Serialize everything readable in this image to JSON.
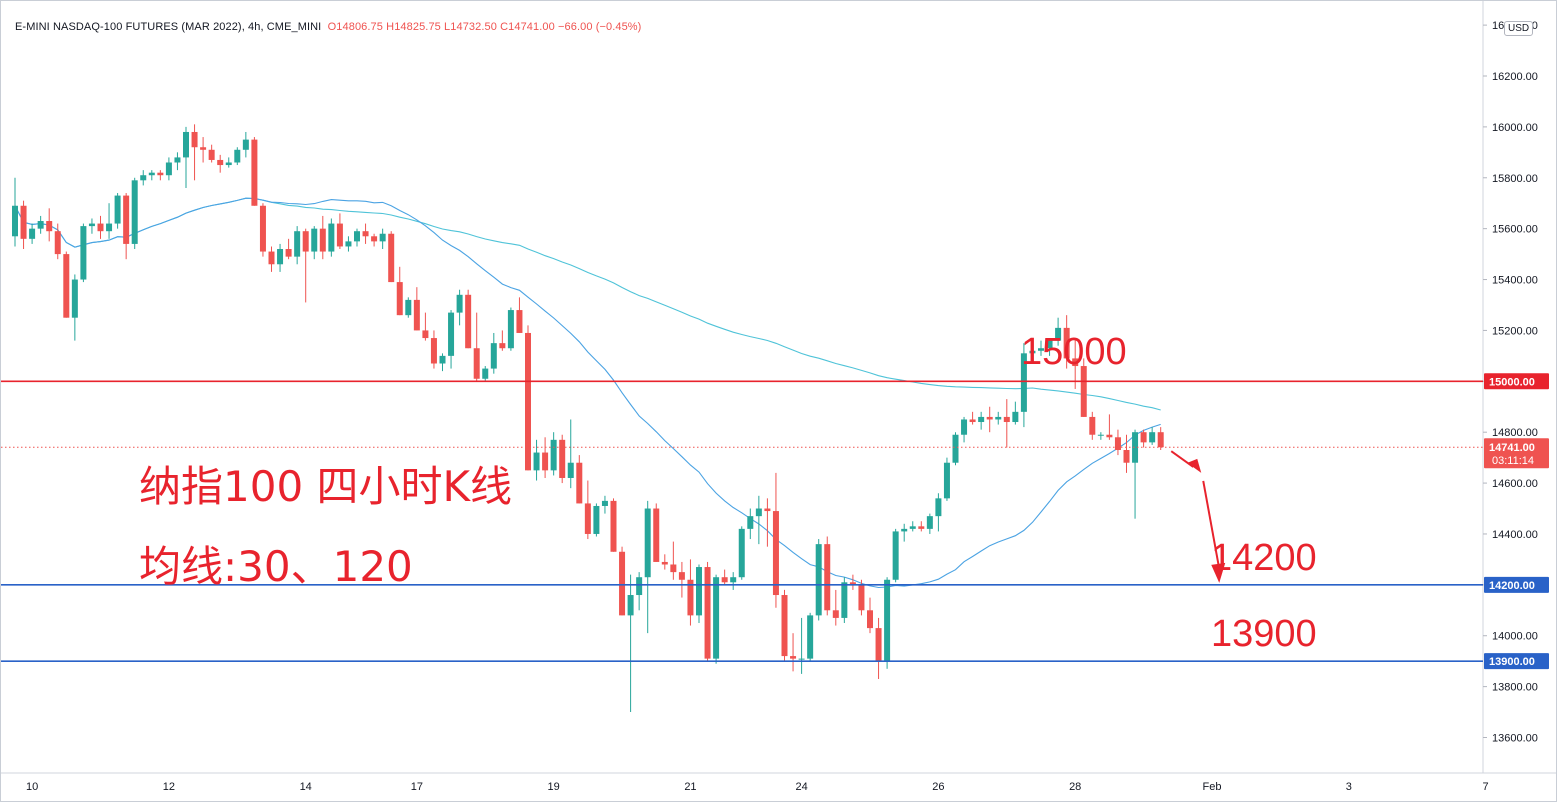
{
  "header": {
    "symbol": "E-MINI NASDAQ-100 FUTURES (MAR 2022), 4h, CME_MINI",
    "open": "O14806.75",
    "high": "H14825.75",
    "low": "L14732.50",
    "close": "C14741.00",
    "change": "−66.00 (−0.45%)"
  },
  "currency": "USD",
  "annotations": {
    "title": "纳指100 四小时K线",
    "ma_note": "均线:30、120",
    "level_15000": "15000",
    "level_14200": "14200",
    "level_13900": "13900"
  },
  "colors": {
    "up": "#26a69a",
    "down": "#ef5350",
    "ma30": "#4ba3e3",
    "ma120": "#4fc3d8",
    "resistance": "#e8232d",
    "support": "#2962c8"
  },
  "chart_data": {
    "type": "candlestick",
    "timeframe": "4h",
    "y_axis": {
      "ticks": [
        13600,
        13800,
        14000,
        14200,
        14400,
        14600,
        14800,
        15000,
        15200,
        15400,
        15600,
        15800,
        16000,
        16200,
        16400
      ],
      "tick_labels": [
        "13600.00",
        "13800.00",
        "14000.00",
        "14200.00",
        "14400.00",
        "14600.00",
        "14800.00",
        "15000.00",
        "15200.00",
        "15400.00",
        "15600.00",
        "15800.00",
        "16000.00",
        "16200.00",
        "16400.00"
      ],
      "range": [
        13480,
        16440
      ]
    },
    "x_axis": {
      "tick_labels": [
        "10",
        "12",
        "14",
        "17",
        "19",
        "21",
        "24",
        "26",
        "28",
        "Feb",
        "3",
        "7"
      ],
      "tick_bar_index": [
        2,
        18,
        34,
        47,
        63,
        79,
        92,
        108,
        124,
        140,
        156,
        172
      ]
    },
    "price_label": {
      "value": "14741.00",
      "countdown": "03:11:14"
    },
    "horizontal_lines": [
      {
        "value": 15000,
        "label": "15000.00",
        "color": "#e8232d"
      },
      {
        "value": 14200,
        "label": "14200.00",
        "color": "#2962c8"
      },
      {
        "value": 13900,
        "label": "13900.00",
        "color": "#2962c8"
      }
    ],
    "candles": [
      [
        15570,
        15800,
        15530,
        15690
      ],
      [
        15690,
        15710,
        15520,
        15560
      ],
      [
        15560,
        15620,
        15540,
        15600
      ],
      [
        15600,
        15650,
        15580,
        15630
      ],
      [
        15630,
        15680,
        15550,
        15590
      ],
      [
        15590,
        15620,
        15480,
        15500
      ],
      [
        15500,
        15510,
        15250,
        15250
      ],
      [
        15250,
        15420,
        15160,
        15400
      ],
      [
        15400,
        15620,
        15390,
        15610
      ],
      [
        15610,
        15640,
        15580,
        15620
      ],
      [
        15620,
        15650,
        15560,
        15590
      ],
      [
        15590,
        15700,
        15560,
        15620
      ],
      [
        15620,
        15740,
        15600,
        15730
      ],
      [
        15730,
        15740,
        15480,
        15540
      ],
      [
        15540,
        15800,
        15520,
        15790
      ],
      [
        15790,
        15830,
        15770,
        15810
      ],
      [
        15810,
        15830,
        15790,
        15820
      ],
      [
        15820,
        15830,
        15790,
        15810
      ],
      [
        15810,
        15880,
        15790,
        15860
      ],
      [
        15860,
        15900,
        15830,
        15880
      ],
      [
        15880,
        16000,
        15760,
        15980
      ],
      [
        15980,
        16010,
        15790,
        15920
      ],
      [
        15920,
        15960,
        15860,
        15910
      ],
      [
        15910,
        15930,
        15860,
        15870
      ],
      [
        15870,
        15890,
        15820,
        15850
      ],
      [
        15850,
        15880,
        15840,
        15860
      ],
      [
        15860,
        15920,
        15850,
        15910
      ],
      [
        15910,
        15980,
        15880,
        15950
      ],
      [
        15950,
        15960,
        15690,
        15690
      ],
      [
        15690,
        15700,
        15490,
        15510
      ],
      [
        15510,
        15530,
        15430,
        15460
      ],
      [
        15460,
        15540,
        15430,
        15520
      ],
      [
        15520,
        15560,
        15480,
        15490
      ],
      [
        15490,
        15610,
        15460,
        15590
      ],
      [
        15590,
        15600,
        15310,
        15510
      ],
      [
        15510,
        15610,
        15480,
        15600
      ],
      [
        15600,
        15650,
        15480,
        15510
      ],
      [
        15510,
        15640,
        15490,
        15620
      ],
      [
        15620,
        15660,
        15520,
        15530
      ],
      [
        15530,
        15570,
        15510,
        15550
      ],
      [
        15550,
        15600,
        15530,
        15590
      ],
      [
        15590,
        15620,
        15540,
        15570
      ],
      [
        15570,
        15580,
        15530,
        15550
      ],
      [
        15550,
        15600,
        15520,
        15580
      ],
      [
        15580,
        15590,
        15390,
        15390
      ],
      [
        15390,
        15450,
        15260,
        15260
      ],
      [
        15260,
        15330,
        15250,
        15320
      ],
      [
        15320,
        15370,
        15200,
        15200
      ],
      [
        15200,
        15270,
        15160,
        15170
      ],
      [
        15170,
        15200,
        15050,
        15070
      ],
      [
        15070,
        15110,
        15040,
        15100
      ],
      [
        15100,
        15280,
        15050,
        15270
      ],
      [
        15270,
        15360,
        15220,
        15340
      ],
      [
        15340,
        15360,
        15130,
        15130
      ],
      [
        15130,
        15270,
        15000,
        15010
      ],
      [
        15010,
        15060,
        15000,
        15050
      ],
      [
        15050,
        15190,
        15030,
        15150
      ],
      [
        15150,
        15200,
        15120,
        15130
      ],
      [
        15130,
        15290,
        15120,
        15280
      ],
      [
        15280,
        15330,
        15190,
        15190
      ],
      [
        15190,
        15220,
        14650,
        14650
      ],
      [
        14650,
        14770,
        14610,
        14720
      ],
      [
        14720,
        14780,
        14620,
        14650
      ],
      [
        14650,
        14800,
        14630,
        14770
      ],
      [
        14770,
        14790,
        14600,
        14620
      ],
      [
        14620,
        14850,
        14580,
        14680
      ],
      [
        14680,
        14710,
        14520,
        14520
      ],
      [
        14520,
        14610,
        14380,
        14400
      ],
      [
        14400,
        14520,
        14390,
        14510
      ],
      [
        14510,
        14550,
        14480,
        14530
      ],
      [
        14530,
        14540,
        14330,
        14330
      ],
      [
        14330,
        14350,
        14080,
        14080
      ],
      [
        14080,
        14240,
        13700,
        14160
      ],
      [
        14160,
        14250,
        14100,
        14230
      ],
      [
        14230,
        14530,
        14010,
        14500
      ],
      [
        14500,
        14520,
        14290,
        14290
      ],
      [
        14290,
        14320,
        14260,
        14280
      ],
      [
        14280,
        14370,
        14220,
        14250
      ],
      [
        14250,
        14290,
        14150,
        14220
      ],
      [
        14220,
        14300,
        14040,
        14080
      ],
      [
        14080,
        14280,
        14050,
        14270
      ],
      [
        14270,
        14290,
        13900,
        13910
      ],
      [
        13910,
        14240,
        13890,
        14230
      ],
      [
        14230,
        14260,
        14200,
        14210
      ],
      [
        14210,
        14250,
        14180,
        14230
      ],
      [
        14230,
        14430,
        14220,
        14420
      ],
      [
        14420,
        14500,
        14380,
        14470
      ],
      [
        14470,
        14550,
        14360,
        14500
      ],
      [
        14500,
        14540,
        14350,
        14490
      ],
      [
        14490,
        14640,
        14110,
        14160
      ],
      [
        14160,
        14180,
        13900,
        13920
      ],
      [
        13920,
        14010,
        13860,
        13910
      ],
      [
        13910,
        14070,
        13850,
        13910
      ],
      [
        13910,
        14090,
        13900,
        14080
      ],
      [
        14080,
        14380,
        14060,
        14360
      ],
      [
        14360,
        14390,
        14080,
        14100
      ],
      [
        14100,
        14180,
        14040,
        14070
      ],
      [
        14070,
        14230,
        14050,
        14210
      ],
      [
        14210,
        14240,
        14180,
        14200
      ],
      [
        14200,
        14220,
        14080,
        14100
      ],
      [
        14100,
        14150,
        14010,
        14030
      ],
      [
        14030,
        14070,
        13830,
        13900
      ],
      [
        13900,
        14230,
        13870,
        14220
      ],
      [
        14220,
        14420,
        14210,
        14410
      ],
      [
        14410,
        14440,
        14370,
        14420
      ],
      [
        14420,
        14450,
        14410,
        14430
      ],
      [
        14430,
        14450,
        14410,
        14420
      ],
      [
        14420,
        14480,
        14400,
        14470
      ],
      [
        14470,
        14560,
        14410,
        14540
      ],
      [
        14540,
        14700,
        14530,
        14680
      ],
      [
        14680,
        14800,
        14670,
        14790
      ],
      [
        14790,
        14860,
        14760,
        14850
      ],
      [
        14850,
        14880,
        14830,
        14840
      ],
      [
        14840,
        14880,
        14810,
        14860
      ],
      [
        14860,
        14900,
        14800,
        14850
      ],
      [
        14850,
        14880,
        14830,
        14860
      ],
      [
        14860,
        14930,
        14740,
        14840
      ],
      [
        14840,
        14920,
        14830,
        14880
      ],
      [
        14880,
        15150,
        14820,
        15110
      ],
      [
        15110,
        15130,
        15100,
        15120
      ],
      [
        15120,
        15160,
        15100,
        15130
      ],
      [
        15130,
        15170,
        15100,
        15160
      ],
      [
        15160,
        15250,
        15140,
        15210
      ],
      [
        15210,
        15260,
        15050,
        15090
      ],
      [
        15090,
        15170,
        14970,
        15060
      ],
      [
        15060,
        15090,
        14860,
        14860
      ],
      [
        14860,
        14880,
        14770,
        14790
      ],
      [
        14790,
        14800,
        14770,
        14790
      ],
      [
        14790,
        14870,
        14770,
        14780
      ],
      [
        14780,
        14810,
        14710,
        14730
      ],
      [
        14730,
        14790,
        14640,
        14680
      ],
      [
        14680,
        14810,
        14460,
        14800
      ],
      [
        14800,
        14810,
        14740,
        14760
      ],
      [
        14760,
        14820,
        14750,
        14800
      ],
      [
        14800,
        14820,
        14730,
        14741
      ]
    ],
    "series": [
      {
        "name": "MA30",
        "period": 30
      },
      {
        "name": "MA120",
        "period": 120
      }
    ],
    "projection_arrow": {
      "from_value": 14741,
      "to_value": 14200
    }
  }
}
